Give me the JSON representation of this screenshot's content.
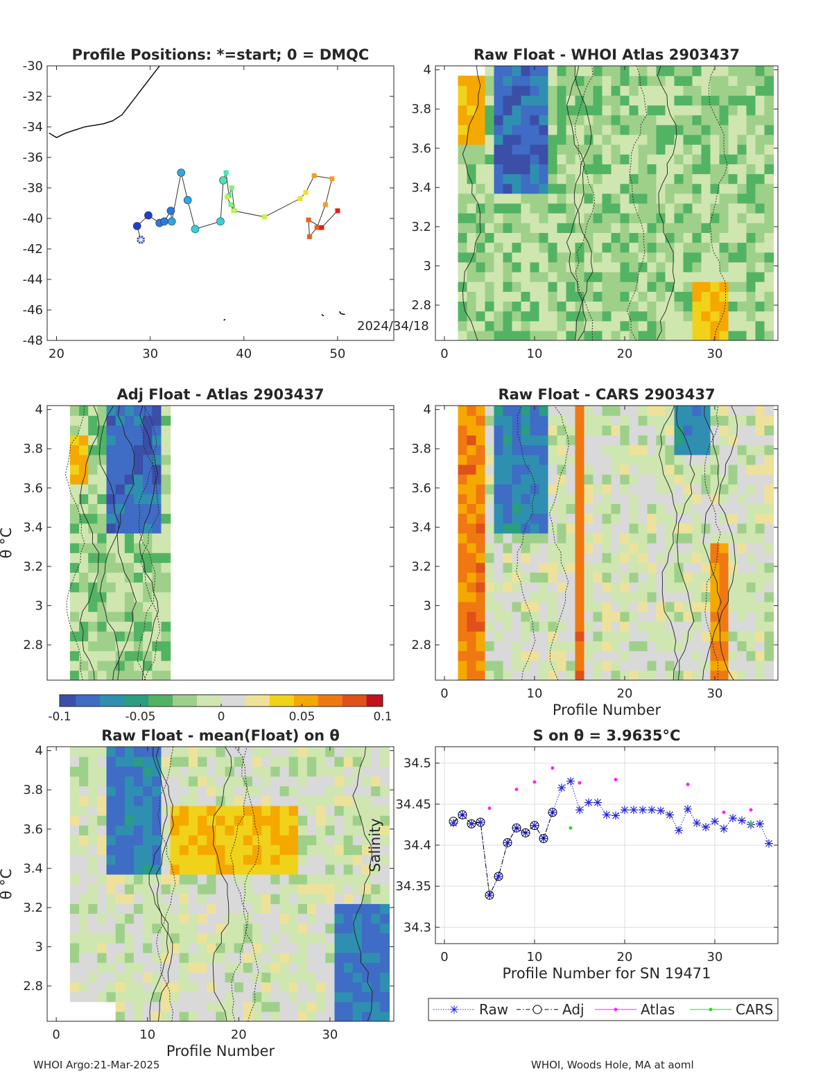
{
  "footer": {
    "left": "WHOI Argo:21-Mar-2025",
    "right": "WHOI, Woods Hole, MA at aoml"
  },
  "colors": {
    "diverging_colormap": [
      "#3b4ea8",
      "#3f6cc4",
      "#2f8fb0",
      "#2a9d82",
      "#53b364",
      "#9ed08a",
      "#cfe6b0",
      "#d9d9d9",
      "#eee29a",
      "#f1d21a",
      "#f5a800",
      "#f07812",
      "#e0501a",
      "#c2101d"
    ],
    "raw_marker": "#2222dd",
    "adj_marker": "#000000",
    "atlas_marker": "#ff22ff",
    "cars_marker": "#22dd22"
  },
  "chart_data": [
    {
      "id": "positions",
      "type": "scatter",
      "title": "Profile Positions: *=start; 0 = DMQC",
      "xlabel": "",
      "ylabel": "",
      "xlim": [
        19,
        56
      ],
      "ylim": [
        -48,
        -30
      ],
      "xticks": [
        20,
        30,
        40,
        50
      ],
      "yticks": [
        -48,
        -46,
        -44,
        -42,
        -40,
        -38,
        -36,
        -34,
        -32,
        -30
      ],
      "annotation": "2024/34/18",
      "track_lon": [
        29.0,
        28.6,
        29.8,
        31.0,
        31.5,
        32.2,
        32.3,
        33.3,
        34.0,
        34.8,
        37.5,
        37.8,
        38.1,
        38.4,
        38.7,
        39.0,
        38.6,
        38.2,
        38.9,
        42.2,
        46.0,
        46.6,
        47.5,
        49.4,
        48.7,
        47.8,
        47.0,
        46.9,
        48.3,
        50.0
      ],
      "track_lat": [
        -41.4,
        -40.5,
        -39.8,
        -40.3,
        -40.2,
        -39.5,
        -40.2,
        -37.0,
        -38.8,
        -40.7,
        -40.2,
        -37.5,
        -37.0,
        -38.5,
        -38.0,
        -39.5,
        -39.1,
        -38.6,
        -39.5,
        -39.9,
        -38.7,
        -38.3,
        -37.2,
        -37.4,
        -39.1,
        -40.6,
        -41.2,
        -40.1,
        -40.6,
        -39.5
      ],
      "coast_lon": [
        19.2,
        20.0,
        21.0,
        22.0,
        23.0,
        24.0,
        25.0,
        26.0,
        27.0,
        27.5,
        28.0,
        28.5,
        29.0,
        29.5,
        30.0,
        30.5,
        31.0
      ],
      "coast_lat": [
        -34.4,
        -34.7,
        -34.4,
        -34.2,
        -34.0,
        -33.9,
        -33.8,
        -33.6,
        -33.2,
        -32.8,
        -32.4,
        -32.0,
        -31.6,
        -31.2,
        -30.8,
        -30.4,
        -30.0
      ]
    },
    {
      "id": "raw-atlas",
      "type": "heatmap",
      "title": "Raw Float - WHOI Atlas  2903437",
      "xlim": [
        -1,
        37
      ],
      "ylim": [
        2.62,
        4.02
      ],
      "xticks": [
        0,
        10,
        20,
        30
      ],
      "yticks": [
        2.8,
        3,
        3.2,
        3.4,
        3.6,
        3.8,
        4
      ],
      "ylabel": "",
      "xlabel": ""
    },
    {
      "id": "adj-atlas",
      "type": "heatmap",
      "title": "Adj Float - Atlas  2903437",
      "xlim": [
        -1,
        37
      ],
      "ylim": [
        2.62,
        4.02
      ],
      "xticks": [],
      "yticks": [
        2.8,
        3,
        3.2,
        3.4,
        3.6,
        3.8,
        4
      ],
      "ylabel": "θ °C",
      "xlabel": ""
    },
    {
      "id": "raw-cars",
      "type": "heatmap",
      "title": "Raw Float - CARS  2903437",
      "xlim": [
        -1,
        37
      ],
      "ylim": [
        2.62,
        4.02
      ],
      "xticks": [
        0,
        10,
        20,
        30
      ],
      "yticks": [
        2.8,
        3,
        3.2,
        3.4,
        3.6,
        3.8,
        4
      ],
      "ylabel": "",
      "xlabel": "Profile Number"
    },
    {
      "id": "colorbar",
      "type": "heatmap",
      "title": "",
      "range": [
        -0.1,
        0.1
      ],
      "tick_labels": [
        "-0.1",
        "-0.05",
        "0",
        "0.05",
        "0.1"
      ]
    },
    {
      "id": "raw-mean",
      "type": "heatmap",
      "title": "Raw Float - mean(Float) on θ",
      "xlim": [
        -1,
        37
      ],
      "ylim": [
        2.62,
        4.02
      ],
      "xticks": [
        0,
        10,
        20,
        30
      ],
      "yticks": [
        2.8,
        3,
        3.2,
        3.4,
        3.6,
        3.8,
        4
      ],
      "ylabel": "θ °C",
      "xlabel": "Profile Number"
    },
    {
      "id": "salinity",
      "type": "line",
      "title": "S on θ = 3.9635°C",
      "xlabel": "Profile Number for SN 19471",
      "ylabel": "Salinity",
      "xlim": [
        -1,
        37
      ],
      "ylim": [
        34.28,
        34.52
      ],
      "xticks": [
        0,
        10,
        20,
        30
      ],
      "yticks": [
        34.3,
        34.35,
        34.4,
        34.45,
        34.5
      ],
      "grid": true,
      "legend": {
        "placement": "bottom",
        "entries": [
          "Raw",
          "Adj",
          "Atlas",
          "CARS"
        ]
      },
      "series": [
        {
          "name": "Raw",
          "x": [
            1,
            2,
            3,
            4,
            5,
            6,
            7,
            8,
            9,
            10,
            11,
            12,
            13,
            14,
            15,
            16,
            17,
            18,
            19,
            20,
            21,
            22,
            23,
            24,
            25,
            26,
            27,
            28,
            29,
            30,
            31,
            32,
            33,
            34,
            35,
            36
          ],
          "y": [
            34.427,
            34.437,
            34.426,
            34.428,
            34.339,
            34.362,
            34.403,
            34.421,
            34.415,
            34.424,
            34.408,
            34.44,
            34.47,
            34.478,
            34.443,
            34.452,
            34.452,
            34.437,
            34.436,
            34.443,
            34.443,
            34.443,
            34.443,
            34.442,
            34.437,
            34.418,
            34.444,
            34.427,
            34.422,
            34.429,
            34.42,
            34.433,
            34.43,
            34.425,
            34.426,
            34.402
          ]
        },
        {
          "name": "Adj",
          "x": [
            1,
            2,
            3,
            4,
            5,
            6,
            7,
            8,
            9,
            10,
            11,
            12
          ],
          "y": [
            34.429,
            34.437,
            34.426,
            34.428,
            34.339,
            34.362,
            34.403,
            34.421,
            34.415,
            34.424,
            34.408,
            34.44
          ]
        },
        {
          "name": "Atlas",
          "x": [
            5,
            8,
            10,
            12,
            15,
            19,
            27,
            31,
            34
          ],
          "y": [
            34.445,
            34.468,
            34.477,
            34.494,
            34.476,
            34.48,
            34.474,
            34.44,
            34.443
          ]
        },
        {
          "name": "CARS",
          "x": [
            14,
            34
          ],
          "y": [
            34.421,
            34.426
          ]
        }
      ]
    }
  ]
}
